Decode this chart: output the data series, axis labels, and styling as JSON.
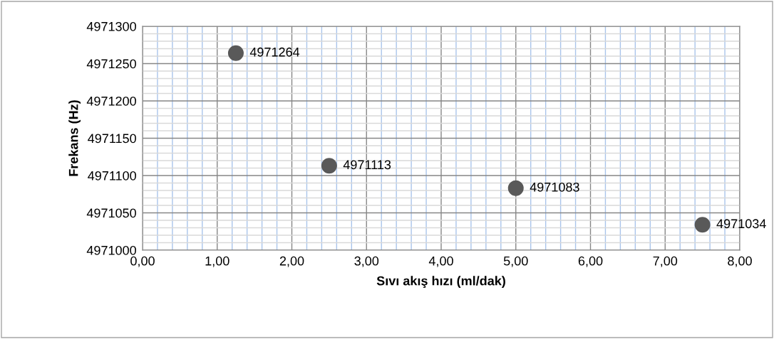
{
  "chart_data": {
    "type": "scatter",
    "xlabel": "Sıvı akış hızı (ml/dak)",
    "ylabel": "Frekans (Hz)",
    "x": [
      1.25,
      2.5,
      5.0,
      7.5
    ],
    "series": [
      {
        "color": "#595959",
        "values": [
          4971264,
          4971113,
          4971083,
          4971034
        ]
      }
    ],
    "data_labels": true,
    "marker": "circle",
    "grid": true,
    "legend": false,
    "xlim": [
      0,
      8
    ],
    "xticks": [
      {
        "value": 0,
        "label": "0,00"
      },
      {
        "value": 0.2,
        "label": null
      },
      {
        "value": 0.4,
        "label": null
      },
      {
        "value": 0.6,
        "label": null
      },
      {
        "value": 0.8,
        "label": null
      },
      {
        "value": 1,
        "label": "1,00"
      },
      {
        "value": 1.2,
        "label": null
      },
      {
        "value": 1.4,
        "label": null
      },
      {
        "value": 1.6,
        "label": null
      },
      {
        "value": 1.8,
        "label": null
      },
      {
        "value": 2,
        "label": "2,00"
      },
      {
        "value": 2.2,
        "label": null
      },
      {
        "value": 2.4,
        "label": null
      },
      {
        "value": 2.6,
        "label": null
      },
      {
        "value": 2.8,
        "label": null
      },
      {
        "value": 3,
        "label": "3,00"
      },
      {
        "value": 3.2,
        "label": null
      },
      {
        "value": 3.4,
        "label": null
      },
      {
        "value": 3.6,
        "label": null
      },
      {
        "value": 3.8,
        "label": null
      },
      {
        "value": 4,
        "label": "4,00"
      },
      {
        "value": 4.2,
        "label": null
      },
      {
        "value": 4.4,
        "label": null
      },
      {
        "value": 4.6,
        "label": null
      },
      {
        "value": 4.8,
        "label": null
      },
      {
        "value": 5,
        "label": "5,00"
      },
      {
        "value": 5.2,
        "label": null
      },
      {
        "value": 5.4,
        "label": null
      },
      {
        "value": 5.6,
        "label": null
      },
      {
        "value": 5.8,
        "label": null
      },
      {
        "value": 6,
        "label": "6,00"
      },
      {
        "value": 6.2,
        "label": null
      },
      {
        "value": 6.4,
        "label": null
      },
      {
        "value": 6.6,
        "label": null
      },
      {
        "value": 6.8,
        "label": null
      },
      {
        "value": 7,
        "label": "7,00"
      },
      {
        "value": 7.2,
        "label": null
      },
      {
        "value": 7.4,
        "label": null
      },
      {
        "value": 7.6,
        "label": null
      },
      {
        "value": 7.8,
        "label": null
      },
      {
        "value": 8,
        "label": "8,00"
      }
    ],
    "ylim": [
      4971000,
      4971300
    ],
    "yticks": [
      4971000,
      {
        "value": 4971010,
        "label": null
      },
      {
        "value": 4971020,
        "label": null
      },
      {
        "value": 4971030,
        "label": null
      },
      {
        "value": 4971040,
        "label": null
      },
      4971050,
      {
        "value": 4971060,
        "label": null
      },
      {
        "value": 4971070,
        "label": null
      },
      {
        "value": 4971080,
        "label": null
      },
      {
        "value": 4971090,
        "label": null
      },
      4971100,
      {
        "value": 4971110,
        "label": null
      },
      {
        "value": 4971120,
        "label": null
      },
      {
        "value": 4971130,
        "label": null
      },
      {
        "value": 4971140,
        "label": null
      },
      4971150,
      {
        "value": 4971160,
        "label": null
      },
      {
        "value": 4971170,
        "label": null
      },
      {
        "value": 4971180,
        "label": null
      },
      {
        "value": 4971190,
        "label": null
      },
      4971200,
      {
        "value": 4971210,
        "label": null
      },
      {
        "value": 4971220,
        "label": null
      },
      {
        "value": 4971230,
        "label": null
      },
      {
        "value": 4971240,
        "label": null
      },
      4971250,
      {
        "value": 4971260,
        "label": null
      },
      {
        "value": 4971270,
        "label": null
      },
      {
        "value": 4971280,
        "label": null
      },
      {
        "value": 4971290,
        "label": null
      },
      4971300
    ]
  }
}
